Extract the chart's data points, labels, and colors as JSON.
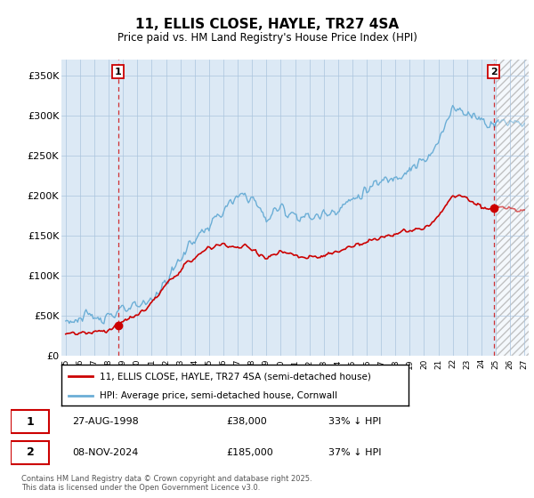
{
  "title": "11, ELLIS CLOSE, HAYLE, TR27 4SA",
  "subtitle": "Price paid vs. HM Land Registry's House Price Index (HPI)",
  "hpi_color": "#6baed6",
  "price_color": "#cc0000",
  "vline_color": "#cc0000",
  "ylim": [
    0,
    370000
  ],
  "yticks": [
    0,
    50000,
    100000,
    150000,
    200000,
    250000,
    300000,
    350000
  ],
  "ytick_labels": [
    "£0",
    "£50K",
    "£100K",
    "£150K",
    "£200K",
    "£250K",
    "£300K",
    "£350K"
  ],
  "legend_label_red": "11, ELLIS CLOSE, HAYLE, TR27 4SA (semi-detached house)",
  "legend_label_blue": "HPI: Average price, semi-detached house, Cornwall",
  "transaction1_date": "27-AUG-1998",
  "transaction1_price": "£38,000",
  "transaction1_hpi": "33% ↓ HPI",
  "transaction2_date": "08-NOV-2024",
  "transaction2_price": "£185,000",
  "transaction2_hpi": "37% ↓ HPI",
  "footer": "Contains HM Land Registry data © Crown copyright and database right 2025.\nThis data is licensed under the Open Government Licence v3.0.",
  "chart_bg": "#dce9f5",
  "grid_color": "#aac4de",
  "hatch_bg": "#e8e8e8",
  "xlim_start": 1994.7,
  "xlim_end": 2027.3,
  "t1_year": 1998.65,
  "t2_year": 2024.86,
  "hatch_start": 2025.0
}
